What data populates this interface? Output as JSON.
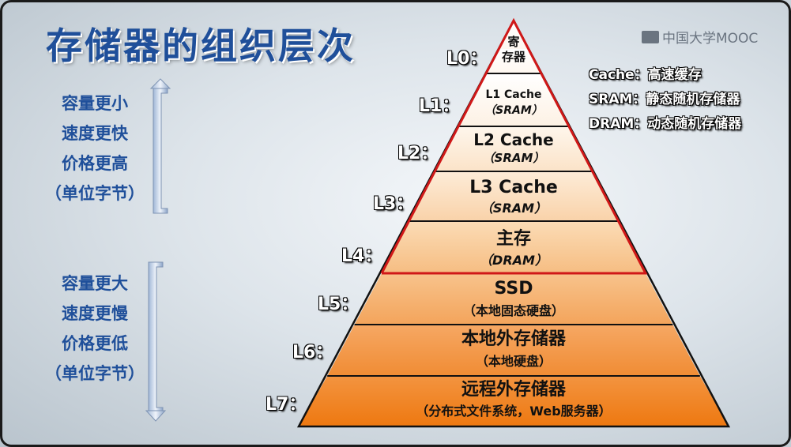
{
  "title": "存储器的组织层次",
  "logo_text": "中国大学MOOC",
  "legend": [
    {
      "text": "Cache：高速缓存"
    },
    {
      "text": "SRAM：静态随机存储器"
    },
    {
      "text": "DRAM：动态随机存储器"
    }
  ],
  "top_group": [
    "容量更小",
    "速度更快",
    "价格更高",
    "（单位字节）"
  ],
  "bottom_group": [
    "容量更大",
    "速度更慢",
    "价格更低",
    "（单位字节）"
  ],
  "levels": [
    {
      "label": "L0：",
      "line1": "寄",
      "line2": "存器"
    },
    {
      "label": "L1：",
      "line1": "L1 Cache",
      "line2": "（SRAM）"
    },
    {
      "label": "L2：",
      "line1": "L2 Cache",
      "line2": "（SRAM）"
    },
    {
      "label": "L3：",
      "line1": "L3 Cache",
      "line2": "（SRAM）"
    },
    {
      "label": "L4：",
      "line1": "主存",
      "line2": "（DRAM）"
    },
    {
      "label": "L5：",
      "line1": "SSD",
      "line2": "（本地固态硬盘）"
    },
    {
      "label": "L6：",
      "line1": "本地外存储器",
      "line2": "（本地硬盘）"
    },
    {
      "label": "L7：",
      "line1": "远程外存储器",
      "line2": "（分布式文件系统，Web服务器）"
    }
  ],
  "colors": {
    "title": "#1f4f9a",
    "border_red": "#d01818",
    "orange_dark": "#f07a10",
    "orange_light": "#fde8cf"
  }
}
